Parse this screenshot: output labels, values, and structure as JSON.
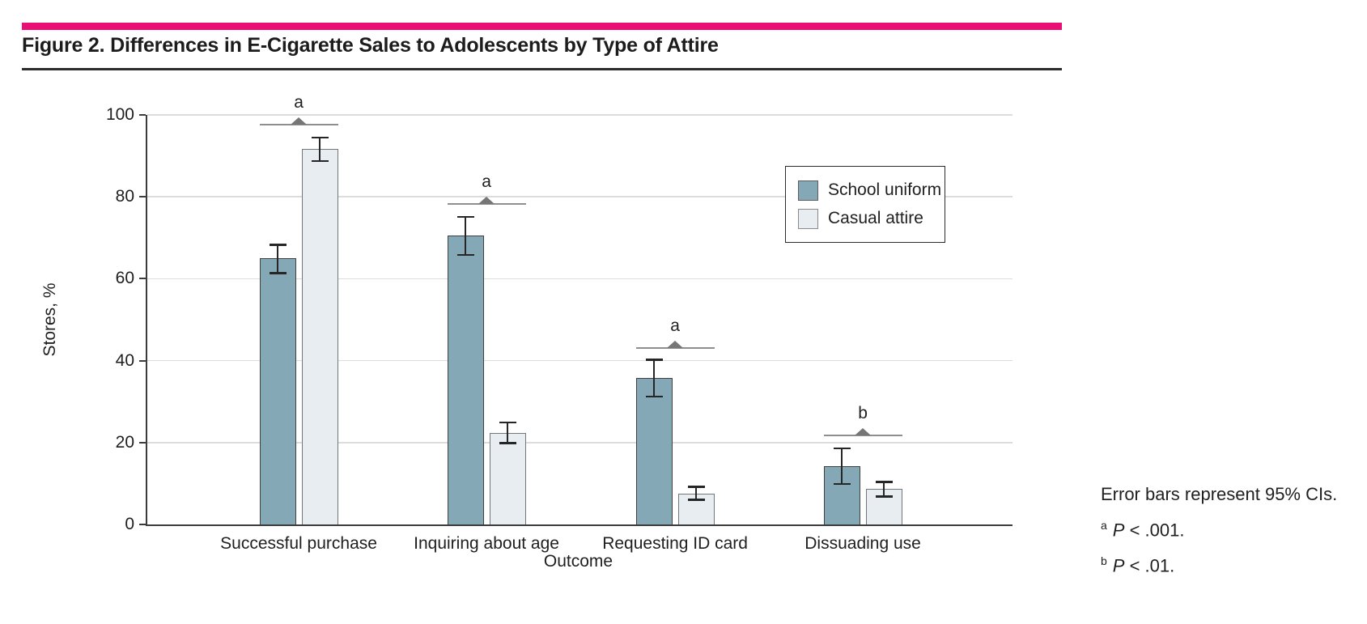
{
  "header": {
    "title": "Figure 2. Differences in E-Cigarette Sales to Adolescents by Type of Attire",
    "accent_color": "#E90F74"
  },
  "chart_data": {
    "type": "bar",
    "title": "Figure 2. Differences in E-Cigarette Sales to Adolescents by Type of Attire",
    "xlabel": "Outcome",
    "ylabel": "Stores, %",
    "ylim": [
      0,
      100
    ],
    "yticks": [
      0,
      20,
      40,
      60,
      80,
      100
    ],
    "grid": true,
    "legend_position": "inside-top-right",
    "categories": [
      "Successful purchase",
      "Inquiring about age",
      "Requesting ID card",
      "Dissuading use"
    ],
    "series": [
      {
        "name": "School uniform",
        "color": "#85A8B7",
        "border_color": "#3F3F3F",
        "values": [
          65.0,
          70.5,
          35.8,
          14.2
        ],
        "ci_low": [
          61.4,
          65.9,
          31.3,
          9.9
        ],
        "ci_high": [
          68.3,
          75.1,
          40.3,
          18.6
        ]
      },
      {
        "name": "Casual attire",
        "color": "#E7EDF0",
        "border_color": "#72787A",
        "values": [
          91.7,
          22.4,
          7.6,
          8.6
        ],
        "ci_low": [
          88.8,
          19.9,
          6.1,
          6.9
        ],
        "ci_high": [
          94.5,
          25.0,
          9.2,
          10.4
        ]
      }
    ],
    "comparisons": [
      {
        "category": "Successful purchase",
        "label": "a",
        "line_y": 97.8
      },
      {
        "category": "Inquiring about age",
        "label": "a",
        "line_y": 78.5
      },
      {
        "category": "Requesting ID card",
        "label": "a",
        "line_y": 43.3
      },
      {
        "category": "Dissuading use",
        "label": "b",
        "line_y": 21.9
      }
    ],
    "error_bar_note": "Error bars represent 95% CIs."
  },
  "legend": {
    "items": [
      {
        "label": "School uniform",
        "color": "#85A8B7",
        "border": "#5c5c5c"
      },
      {
        "label": "Casual attire",
        "color": "#E7EDF0",
        "border": "#8a8a8a"
      }
    ]
  },
  "footnotes": {
    "error_bars": "Error bars represent 95% CIs.",
    "notes": [
      {
        "sup": "a",
        "p": "P",
        "rest": " < .001."
      },
      {
        "sup": "b",
        "p": "P",
        "rest": " < .01."
      }
    ]
  },
  "colors": {
    "accent": "#E90F74",
    "axis": "#3C3C3C",
    "gridline": "#DCDCDC",
    "error_bar": "#262626",
    "sig_line": "#8F8F8F",
    "sig_triangle": "#767676",
    "text": "#1F1F1F"
  }
}
